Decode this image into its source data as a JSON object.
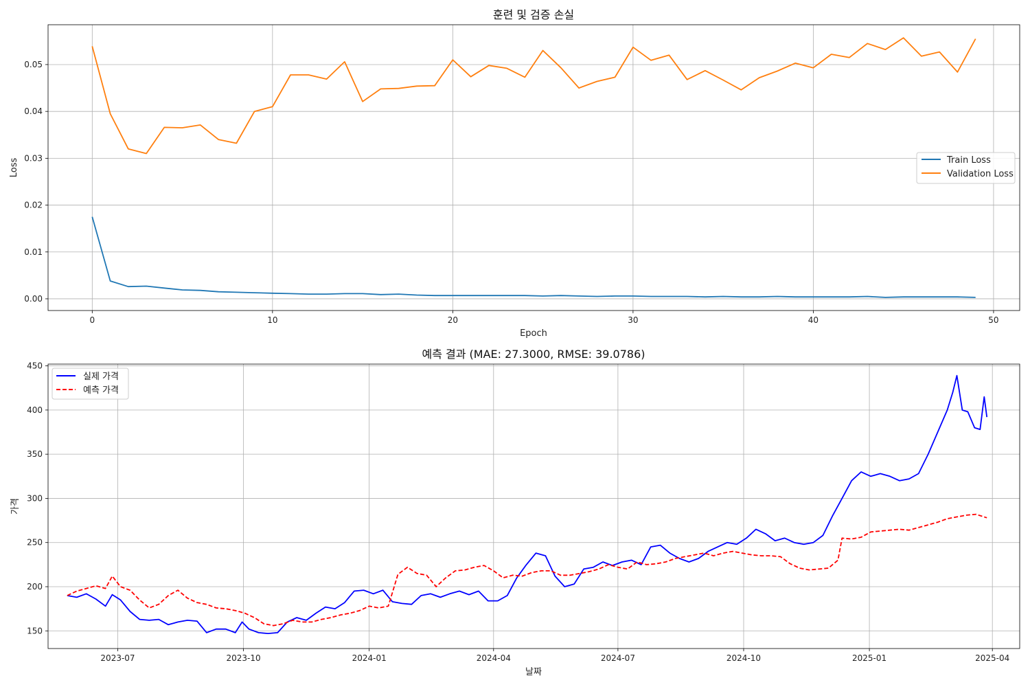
{
  "chart_data": [
    {
      "type": "line",
      "title": "훈련 및 검증 손실",
      "xlabel": "Epoch",
      "ylabel": "Loss",
      "xlim": [
        -2.45,
        51.45
      ],
      "ylim": [
        -0.0025,
        0.0585
      ],
      "xticks": [
        0,
        10,
        20,
        30,
        40,
        50
      ],
      "yticks": [
        0.0,
        0.01,
        0.02,
        0.03,
        0.04,
        0.05
      ],
      "ytick_labels": [
        "0.00",
        "0.01",
        "0.02",
        "0.03",
        "0.04",
        "0.05"
      ],
      "grid": true,
      "legend_position": "center-right",
      "series": [
        {
          "name": "Train Loss",
          "color": "#1f77b4",
          "values": [
            0.0175,
            0.0038,
            0.0026,
            0.0027,
            0.0023,
            0.0019,
            0.0018,
            0.0015,
            0.0014,
            0.0013,
            0.0012,
            0.0011,
            0.001,
            0.001,
            0.0011,
            0.0011,
            0.0009,
            0.001,
            0.0008,
            0.0007,
            0.0007,
            0.0007,
            0.0007,
            0.0007,
            0.0007,
            0.0006,
            0.0007,
            0.0006,
            0.0005,
            0.0006,
            0.0006,
            0.0005,
            0.0005,
            0.0005,
            0.0004,
            0.0005,
            0.0004,
            0.0004,
            0.0005,
            0.0004,
            0.0004,
            0.0004,
            0.0004,
            0.0005,
            0.0003,
            0.0004,
            0.0004,
            0.0004,
            0.0004,
            0.0003
          ]
        },
        {
          "name": "Validation Loss",
          "color": "#ff7f0e",
          "values": [
            0.0539,
            0.0395,
            0.032,
            0.031,
            0.0366,
            0.0365,
            0.0371,
            0.034,
            0.0332,
            0.04,
            0.041,
            0.0478,
            0.0478,
            0.0469,
            0.0506,
            0.0421,
            0.0448,
            0.0449,
            0.0454,
            0.0455,
            0.051,
            0.0474,
            0.0498,
            0.0492,
            0.0473,
            0.053,
            0.0493,
            0.045,
            0.0464,
            0.0473,
            0.0537,
            0.0509,
            0.052,
            0.0468,
            0.0487,
            0.0467,
            0.0446,
            0.0472,
            0.0486,
            0.0503,
            0.0493,
            0.0522,
            0.0515,
            0.0545,
            0.0532,
            0.0557,
            0.0518,
            0.0527,
            0.0484,
            0.0555
          ]
        }
      ]
    },
    {
      "type": "line",
      "title": "예측 결과 (MAE: 27.3000, RMSE: 39.0786)",
      "xlabel": "날짜",
      "ylabel": "가격",
      "xlim": [
        "2023-05-11",
        "2025-04-21"
      ],
      "ylim": [
        130,
        452
      ],
      "xticks": [
        "2023-07-01",
        "2023-10-01",
        "2024-01-01",
        "2024-04-01",
        "2024-07-01",
        "2024-10-01",
        "2025-01-01",
        "2025-04-01"
      ],
      "xtick_labels": [
        "2023-07",
        "2023-10",
        "2024-01",
        "2024-04",
        "2024-07",
        "2024-10",
        "2025-01",
        "2025-04"
      ],
      "yticks": [
        150,
        200,
        250,
        300,
        350,
        400,
        450
      ],
      "grid": true,
      "legend_position": "top-left",
      "series": [
        {
          "name": "실제 가격",
          "color": "#0000ff",
          "dashed": false,
          "points": [
            [
              "2023-05-25",
              190
            ],
            [
              "2023-06-01",
              188
            ],
            [
              "2023-06-08",
              192
            ],
            [
              "2023-06-15",
              186
            ],
            [
              "2023-06-22",
              178
            ],
            [
              "2023-06-27",
              191
            ],
            [
              "2023-07-03",
              185
            ],
            [
              "2023-07-10",
              172
            ],
            [
              "2023-07-17",
              163
            ],
            [
              "2023-07-24",
              162
            ],
            [
              "2023-07-31",
              163
            ],
            [
              "2023-08-07",
              157
            ],
            [
              "2023-08-14",
              160
            ],
            [
              "2023-08-21",
              162
            ],
            [
              "2023-08-28",
              161
            ],
            [
              "2023-09-04",
              148
            ],
            [
              "2023-09-11",
              152
            ],
            [
              "2023-09-18",
              152
            ],
            [
              "2023-09-25",
              148
            ],
            [
              "2023-09-30",
              160
            ],
            [
              "2023-10-05",
              152
            ],
            [
              "2023-10-12",
              148
            ],
            [
              "2023-10-19",
              147
            ],
            [
              "2023-10-26",
              148
            ],
            [
              "2023-11-02",
              160
            ],
            [
              "2023-11-09",
              165
            ],
            [
              "2023-11-16",
              162
            ],
            [
              "2023-11-23",
              170
            ],
            [
              "2023-11-30",
              177
            ],
            [
              "2023-12-07",
              175
            ],
            [
              "2023-12-14",
              182
            ],
            [
              "2023-12-21",
              195
            ],
            [
              "2023-12-28",
              196
            ],
            [
              "2024-01-04",
              192
            ],
            [
              "2024-01-11",
              196
            ],
            [
              "2024-01-18",
              183
            ],
            [
              "2024-01-25",
              181
            ],
            [
              "2024-02-01",
              180
            ],
            [
              "2024-02-08",
              190
            ],
            [
              "2024-02-15",
              192
            ],
            [
              "2024-02-22",
              188
            ],
            [
              "2024-02-29",
              192
            ],
            [
              "2024-03-07",
              195
            ],
            [
              "2024-03-14",
              191
            ],
            [
              "2024-03-21",
              195
            ],
            [
              "2024-03-28",
              184
            ],
            [
              "2024-04-04",
              184
            ],
            [
              "2024-04-11",
              190
            ],
            [
              "2024-04-18",
              210
            ],
            [
              "2024-04-25",
              225
            ],
            [
              "2024-05-02",
              238
            ],
            [
              "2024-05-09",
              235
            ],
            [
              "2024-05-16",
              212
            ],
            [
              "2024-05-23",
              200
            ],
            [
              "2024-05-30",
              203
            ],
            [
              "2024-06-06",
              220
            ],
            [
              "2024-06-13",
              222
            ],
            [
              "2024-06-20",
              228
            ],
            [
              "2024-06-27",
              224
            ],
            [
              "2024-07-04",
              228
            ],
            [
              "2024-07-11",
              230
            ],
            [
              "2024-07-18",
              225
            ],
            [
              "2024-07-25",
              245
            ],
            [
              "2024-08-01",
              247
            ],
            [
              "2024-08-08",
              238
            ],
            [
              "2024-08-15",
              232
            ],
            [
              "2024-08-22",
              228
            ],
            [
              "2024-08-29",
              232
            ],
            [
              "2024-09-05",
              240
            ],
            [
              "2024-09-12",
              245
            ],
            [
              "2024-09-19",
              250
            ],
            [
              "2024-09-26",
              248
            ],
            [
              "2024-10-03",
              255
            ],
            [
              "2024-10-10",
              265
            ],
            [
              "2024-10-17",
              260
            ],
            [
              "2024-10-24",
              252
            ],
            [
              "2024-10-31",
              255
            ],
            [
              "2024-11-07",
              250
            ],
            [
              "2024-11-14",
              248
            ],
            [
              "2024-11-21",
              250
            ],
            [
              "2024-11-28",
              258
            ],
            [
              "2024-12-05",
              280
            ],
            [
              "2024-12-12",
              300
            ],
            [
              "2024-12-19",
              320
            ],
            [
              "2024-12-26",
              330
            ],
            [
              "2025-01-02",
              325
            ],
            [
              "2025-01-09",
              328
            ],
            [
              "2025-01-16",
              325
            ],
            [
              "2025-01-23",
              320
            ],
            [
              "2025-01-30",
              322
            ],
            [
              "2025-02-06",
              328
            ],
            [
              "2025-02-13",
              350
            ],
            [
              "2025-02-20",
              375
            ],
            [
              "2025-02-27",
              400
            ],
            [
              "2025-03-03",
              420
            ],
            [
              "2025-03-06",
              439
            ],
            [
              "2025-03-10",
              400
            ],
            [
              "2025-03-14",
              398
            ],
            [
              "2025-03-19",
              380
            ],
            [
              "2025-03-23",
              378
            ],
            [
              "2025-03-26",
              415
            ],
            [
              "2025-03-28",
              392
            ]
          ]
        },
        {
          "name": "예측 가격",
          "color": "#ff0000",
          "dashed": true,
          "points": [
            [
              "2023-05-25",
              190
            ],
            [
              "2023-06-01",
              195
            ],
            [
              "2023-06-08",
              198
            ],
            [
              "2023-06-15",
              201
            ],
            [
              "2023-06-22",
              198
            ],
            [
              "2023-06-27",
              212
            ],
            [
              "2023-07-03",
              200
            ],
            [
              "2023-07-10",
              196
            ],
            [
              "2023-07-17",
              185
            ],
            [
              "2023-07-24",
              176
            ],
            [
              "2023-07-31",
              180
            ],
            [
              "2023-08-07",
              190
            ],
            [
              "2023-08-14",
              196
            ],
            [
              "2023-08-21",
              187
            ],
            [
              "2023-08-28",
              182
            ],
            [
              "2023-09-04",
              180
            ],
            [
              "2023-09-11",
              176
            ],
            [
              "2023-09-18",
              175
            ],
            [
              "2023-09-25",
              173
            ],
            [
              "2023-10-02",
              170
            ],
            [
              "2023-10-09",
              165
            ],
            [
              "2023-10-16",
              158
            ],
            [
              "2023-10-23",
              156
            ],
            [
              "2023-10-30",
              158
            ],
            [
              "2023-11-06",
              162
            ],
            [
              "2023-11-13",
              160
            ],
            [
              "2023-11-20",
              160
            ],
            [
              "2023-11-27",
              163
            ],
            [
              "2023-12-04",
              165
            ],
            [
              "2023-12-11",
              168
            ],
            [
              "2023-12-18",
              170
            ],
            [
              "2023-12-25",
              173
            ],
            [
              "2024-01-01",
              178
            ],
            [
              "2024-01-08",
              176
            ],
            [
              "2024-01-15",
              178
            ],
            [
              "2024-01-22",
              214
            ],
            [
              "2024-01-29",
              222
            ],
            [
              "2024-02-05",
              215
            ],
            [
              "2024-02-12",
              213
            ],
            [
              "2024-02-19",
              200
            ],
            [
              "2024-02-26",
              210
            ],
            [
              "2024-03-04",
              218
            ],
            [
              "2024-03-11",
              219
            ],
            [
              "2024-03-18",
              222
            ],
            [
              "2024-03-25",
              224
            ],
            [
              "2024-04-01",
              218
            ],
            [
              "2024-04-08",
              210
            ],
            [
              "2024-04-15",
              213
            ],
            [
              "2024-04-22",
              212
            ],
            [
              "2024-04-29",
              216
            ],
            [
              "2024-05-06",
              218
            ],
            [
              "2024-05-13",
              218
            ],
            [
              "2024-05-20",
              213
            ],
            [
              "2024-05-27",
              213
            ],
            [
              "2024-06-03",
              215
            ],
            [
              "2024-06-10",
              217
            ],
            [
              "2024-06-17",
              220
            ],
            [
              "2024-06-24",
              225
            ],
            [
              "2024-07-01",
              222
            ],
            [
              "2024-07-08",
              220
            ],
            [
              "2024-07-15",
              228
            ],
            [
              "2024-07-22",
              225
            ],
            [
              "2024-07-29",
              226
            ],
            [
              "2024-08-05",
              228
            ],
            [
              "2024-08-12",
              232
            ],
            [
              "2024-08-19",
              234
            ],
            [
              "2024-08-26",
              236
            ],
            [
              "2024-09-02",
              238
            ],
            [
              "2024-09-09",
              235
            ],
            [
              "2024-09-16",
              238
            ],
            [
              "2024-09-23",
              240
            ],
            [
              "2024-09-30",
              238
            ],
            [
              "2024-10-07",
              236
            ],
            [
              "2024-10-14",
              235
            ],
            [
              "2024-10-21",
              235
            ],
            [
              "2024-10-28",
              234
            ],
            [
              "2024-11-04",
              226
            ],
            [
              "2024-11-11",
              221
            ],
            [
              "2024-11-18",
              219
            ],
            [
              "2024-11-25",
              220
            ],
            [
              "2024-12-02",
              221
            ],
            [
              "2024-12-09",
              230
            ],
            [
              "2024-12-12",
              255
            ],
            [
              "2024-12-19",
              254
            ],
            [
              "2024-12-26",
              256
            ],
            [
              "2025-01-02",
              262
            ],
            [
              "2025-01-09",
              263
            ],
            [
              "2025-01-16",
              264
            ],
            [
              "2025-01-23",
              265
            ],
            [
              "2025-01-30",
              264
            ],
            [
              "2025-02-06",
              267
            ],
            [
              "2025-02-13",
              270
            ],
            [
              "2025-02-20",
              273
            ],
            [
              "2025-02-27",
              277
            ],
            [
              "2025-03-06",
              279
            ],
            [
              "2025-03-13",
              281
            ],
            [
              "2025-03-20",
              282
            ],
            [
              "2025-03-28",
              278
            ]
          ]
        }
      ]
    }
  ]
}
